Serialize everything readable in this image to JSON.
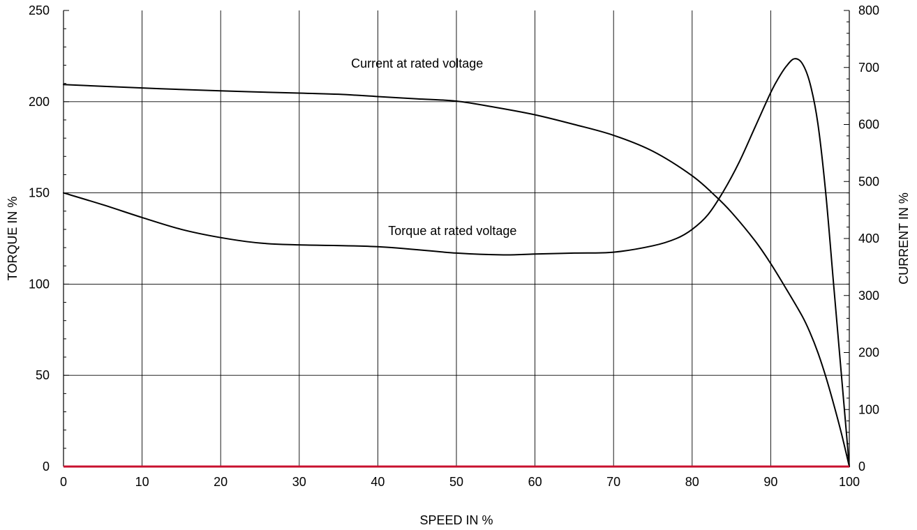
{
  "chart_data": {
    "type": "line",
    "xlabel": "SPEED IN %",
    "ylabel": "TORQUE IN %",
    "y2label": "CURRENT IN %",
    "xlim": [
      0,
      100
    ],
    "ylim": [
      0,
      250
    ],
    "y2lim": [
      0,
      800
    ],
    "x_ticks": [
      0,
      10,
      20,
      30,
      40,
      50,
      60,
      70,
      80,
      90,
      100
    ],
    "y_ticks": [
      0,
      50,
      100,
      150,
      200,
      250
    ],
    "y2_ticks": [
      0,
      100,
      200,
      300,
      400,
      500,
      600,
      700,
      800
    ],
    "grid": true,
    "baseline_color": "#c8102e",
    "series": [
      {
        "axis": "left",
        "x": [
          0,
          5,
          10,
          15,
          20,
          25,
          30,
          40,
          50,
          56,
          60,
          65,
          70,
          75,
          78,
          80,
          82,
          84,
          86,
          88,
          90,
          91,
          92,
          93,
          94,
          95,
          96,
          97,
          98,
          99,
          100
        ],
        "y": [
          150,
          143.5,
          136.5,
          130,
          125.5,
          122.5,
          121.5,
          120.5,
          117,
          116,
          116.5,
          117,
          117.5,
          121,
          125,
          130,
          138,
          151,
          167,
          186,
          205,
          213,
          219.5,
          223.5,
          221,
          210,
          188,
          150,
          100,
          50,
          0
        ]
      },
      {
        "axis": "right",
        "x": [
          0,
          10,
          20,
          30,
          35,
          40,
          45,
          50,
          55,
          60,
          65,
          70,
          75,
          80,
          83,
          85,
          88,
          90,
          92,
          94,
          95,
          96,
          97,
          98,
          99,
          100
        ],
        "y": [
          670,
          664,
          659,
          655,
          653,
          649,
          645,
          641,
          630,
          617,
          600,
          581,
          553,
          510,
          474,
          446,
          396,
          356,
          311,
          264,
          235,
          200,
          158,
          110,
          58,
          0
        ]
      }
    ],
    "annotations": [
      {
        "text": "Current at rated voltage",
        "x": 45,
        "y": 700,
        "axis": "right"
      },
      {
        "text": "Torque at rated voltage",
        "x": 49.5,
        "y": 127,
        "axis": "left"
      }
    ]
  }
}
